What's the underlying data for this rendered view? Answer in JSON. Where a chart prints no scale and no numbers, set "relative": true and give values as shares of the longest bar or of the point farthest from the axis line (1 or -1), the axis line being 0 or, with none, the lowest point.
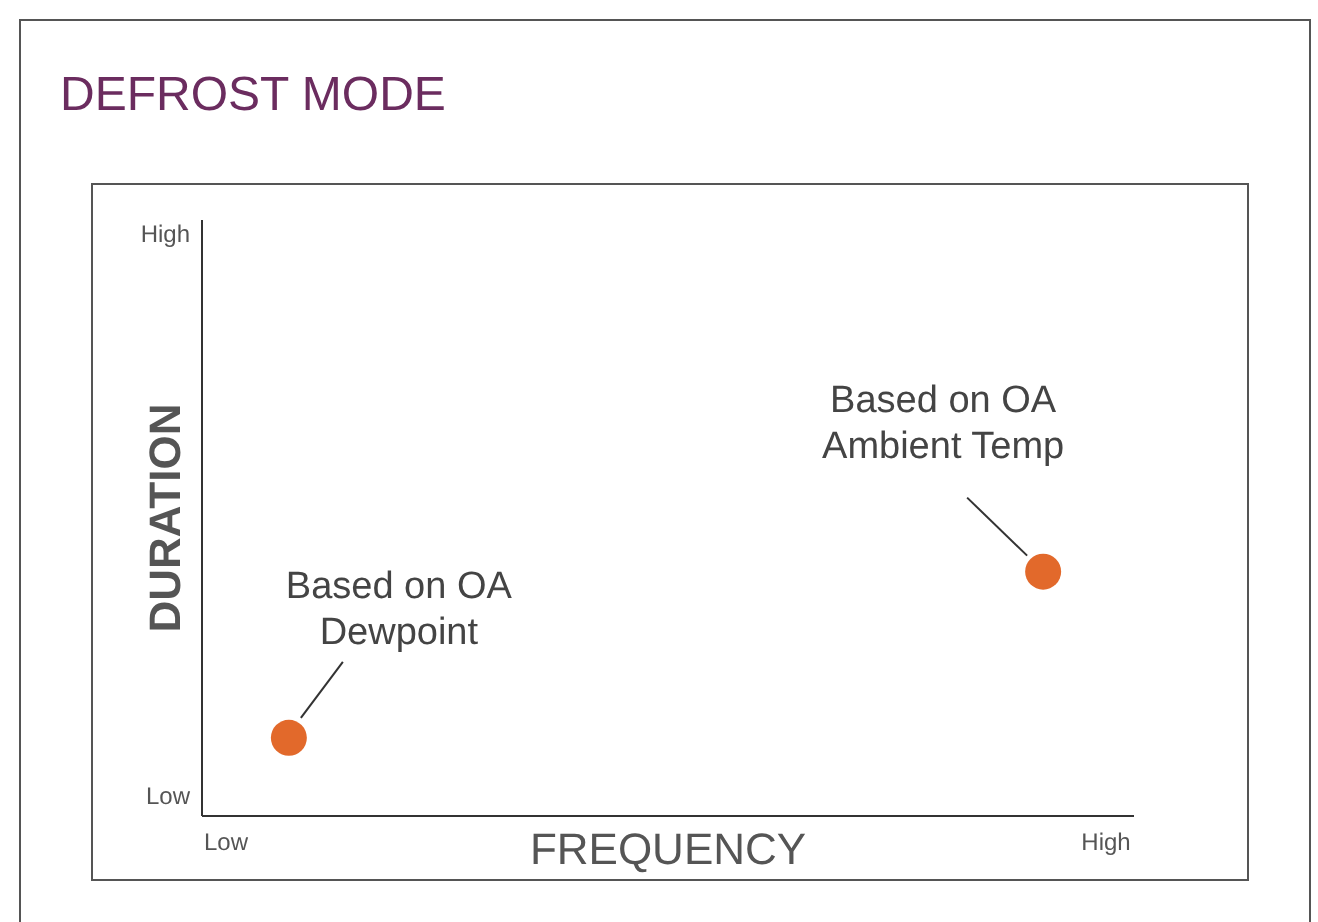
{
  "chart_data": {
    "type": "scatter",
    "title": "DEFROST MODE",
    "xlabel": "FREQUENCY",
    "ylabel": "DURATION",
    "relative": true,
    "categories": [
      "Low",
      null,
      null,
      null,
      null,
      null,
      null,
      null,
      null,
      null,
      null,
      null,
      null,
      null,
      "High"
    ],
    "values": [
      null,
      0.32,
      null,
      null,
      null,
      null,
      null,
      null,
      null,
      null,
      null,
      null,
      null,
      1,
      null
    ],
    "color": "#e2692b",
    "marker": "circle",
    "grid": false,
    "annotations": [
      "Based on OA\nDewpoint",
      "Based on OA\nAmbient Temp",
      "Low",
      "High"
    ]
  }
}
